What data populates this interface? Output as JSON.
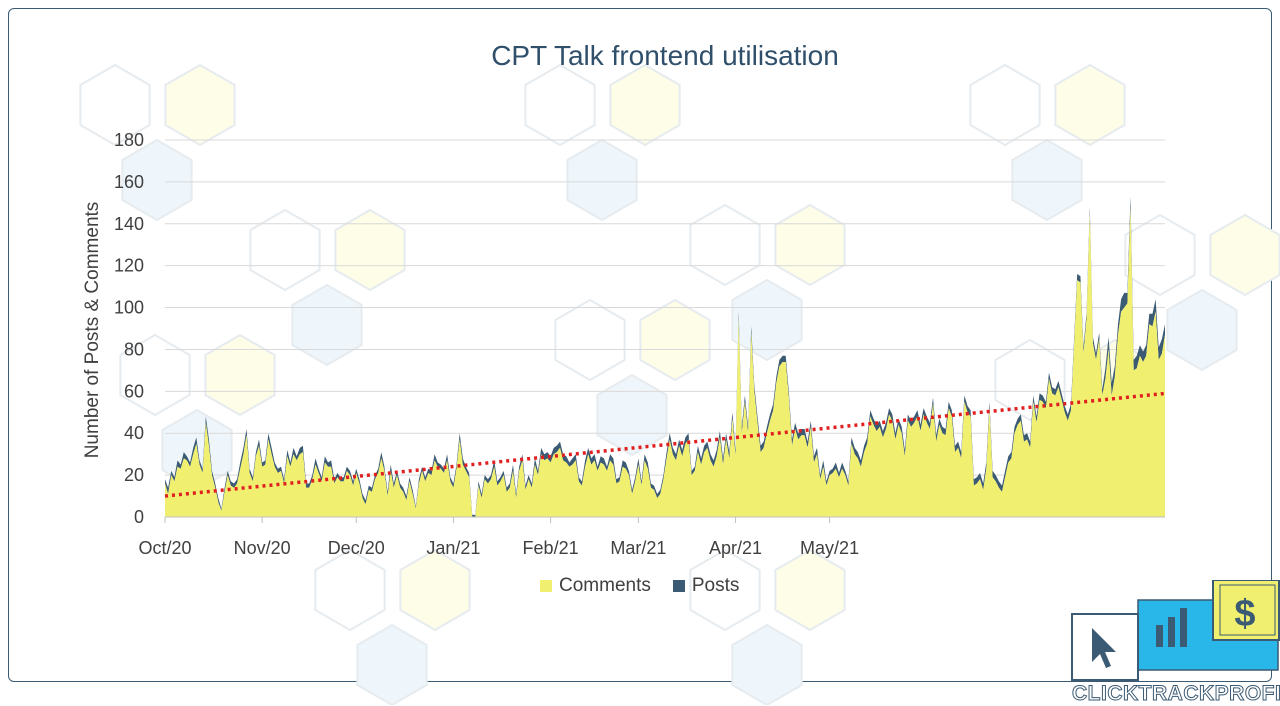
{
  "chart_data": {
    "type": "area",
    "title": "CPT Talk frontend utilisation",
    "ylabel": "Number of Posts & Comments",
    "xlabel": "",
    "ylim": [
      0,
      180
    ],
    "yticks": [
      0,
      20,
      40,
      60,
      80,
      100,
      120,
      140,
      160,
      180
    ],
    "x_tick_labels": [
      "Oct/20",
      "Nov/20",
      "Dec/20",
      "Jan/21",
      "Feb/21",
      "Mar/21",
      "Apr/21",
      "May/21"
    ],
    "x_tick_days": [
      0,
      31,
      61,
      92,
      123,
      151,
      182,
      212
    ],
    "grid": true,
    "legend_position": "bottom",
    "stacked": true,
    "series": [
      {
        "name": "Comments",
        "color": "#f0ef6f",
        "values": [
          16,
          11,
          20,
          17,
          24,
          23,
          28,
          27,
          24,
          30,
          35,
          25,
          21,
          45,
          34,
          20,
          14,
          7,
          3,
          12,
          20,
          15,
          14,
          16,
          23,
          30,
          39,
          21,
          17,
          29,
          34,
          24,
          25,
          37,
          30,
          24,
          21,
          22,
          16,
          29,
          24,
          30,
          27,
          30,
          31,
          14,
          14,
          18,
          25,
          21,
          17,
          26,
          24,
          24,
          16,
          19,
          17,
          17,
          22,
          20,
          15,
          21,
          16,
          9,
          6,
          13,
          12,
          18,
          21,
          28,
          22,
          10,
          22,
          14,
          20,
          14,
          12,
          8,
          17,
          11,
          4,
          16,
          22,
          17,
          21,
          20,
          27,
          24,
          23,
          21,
          27,
          17,
          14,
          23,
          37,
          25,
          22,
          19,
          0,
          0,
          15,
          9,
          18,
          16,
          18,
          24,
          15,
          17,
          20,
          12,
          14,
          22,
          9,
          22,
          27,
          13,
          18,
          14,
          25,
          20,
          30,
          27,
          28,
          26,
          30,
          31,
          33,
          27,
          26,
          24,
          25,
          27,
          17,
          15,
          24,
          30,
          25,
          27,
          22,
          26,
          25,
          22,
          27,
          25,
          16,
          17,
          24,
          23,
          20,
          11,
          17,
          25,
          15,
          27,
          23,
          14,
          13,
          9,
          11,
          18,
          28,
          37,
          30,
          27,
          34,
          29,
          35,
          37,
          20,
          22,
          31,
          25,
          31,
          33,
          27,
          24,
          29,
          38,
          25,
          37,
          28,
          47,
          29,
          95,
          40,
          55,
          40,
          88,
          60,
          45,
          31,
          33,
          40,
          46,
          51,
          64,
          72,
          74,
          74,
          57,
          34,
          42,
          37,
          39,
          39,
          33,
          43,
          26,
          30,
          18,
          24,
          15,
          20,
          21,
          23,
          19,
          23,
          20,
          15,
          35,
          30,
          28,
          24,
          31,
          35,
          48,
          44,
          41,
          43,
          38,
          42,
          49,
          46,
          37,
          44,
          40,
          29,
          46,
          43,
          45,
          48,
          41,
          49,
          45,
          42,
          54,
          36,
          44,
          40,
          39,
          52,
          48,
          31,
          33,
          28,
          55,
          50,
          48,
          15,
          16,
          18,
          13,
          23,
          52,
          19,
          17,
          14,
          12,
          19,
          26,
          28,
          40,
          44,
          46,
          36,
          37,
          33,
          55,
          45,
          56,
          55,
          52,
          66,
          59,
          58,
          62,
          56,
          50,
          46,
          51,
          82,
          113,
          112,
          78,
          95,
          145,
          83,
          75,
          85,
          58,
          66,
          80,
          58,
          67,
          87,
          98,
          100,
          102,
          148,
          70,
          71,
          77,
          74,
          77,
          92,
          91,
          98,
          75,
          78,
          87
        ]
      },
      {
        "name": "Posts",
        "color": "#3b5a73",
        "values": [
          2,
          3,
          2,
          2,
          3,
          2,
          3,
          2,
          2,
          3,
          3,
          2,
          2,
          3,
          3,
          2,
          2,
          2,
          1,
          2,
          2,
          2,
          2,
          2,
          3,
          3,
          3,
          2,
          2,
          2,
          3,
          2,
          2,
          3,
          3,
          2,
          2,
          2,
          2,
          3,
          2,
          3,
          2,
          3,
          3,
          2,
          2,
          2,
          3,
          2,
          2,
          3,
          2,
          3,
          2,
          2,
          2,
          2,
          2,
          2,
          2,
          2,
          2,
          2,
          2,
          2,
          2,
          2,
          2,
          3,
          2,
          2,
          3,
          2,
          2,
          2,
          2,
          2,
          2,
          2,
          1,
          2,
          2,
          2,
          2,
          2,
          3,
          2,
          2,
          2,
          3,
          2,
          2,
          2,
          3,
          3,
          2,
          2,
          1,
          1,
          2,
          2,
          2,
          2,
          2,
          3,
          2,
          2,
          2,
          2,
          2,
          3,
          2,
          2,
          3,
          2,
          2,
          2,
          3,
          2,
          3,
          3,
          3,
          3,
          3,
          3,
          3,
          3,
          3,
          2,
          3,
          3,
          2,
          2,
          3,
          3,
          3,
          3,
          2,
          3,
          3,
          2,
          3,
          3,
          2,
          2,
          3,
          3,
          2,
          2,
          2,
          3,
          2,
          3,
          3,
          2,
          2,
          2,
          2,
          2,
          3,
          3,
          3,
          3,
          3,
          3,
          3,
          3,
          2,
          2,
          3,
          3,
          3,
          3,
          3,
          3,
          3,
          3,
          3,
          3,
          3,
          3,
          3,
          3,
          3,
          3,
          3,
          3,
          3,
          3,
          3,
          3,
          3,
          3,
          3,
          3,
          3,
          3,
          3,
          3,
          3,
          3,
          3,
          3,
          3,
          3,
          3,
          3,
          3,
          2,
          3,
          2,
          2,
          2,
          3,
          2,
          3,
          2,
          2,
          3,
          3,
          3,
          3,
          3,
          3,
          3,
          3,
          3,
          3,
          3,
          3,
          3,
          3,
          3,
          3,
          3,
          3,
          3,
          3,
          3,
          3,
          3,
          3,
          3,
          3,
          3,
          3,
          3,
          3,
          3,
          3,
          3,
          3,
          3,
          3,
          3,
          3,
          3,
          3,
          3,
          3,
          3,
          3,
          3,
          3,
          3,
          3,
          3,
          3,
          3,
          3,
          3,
          3,
          3,
          3,
          3,
          3,
          3,
          3,
          3,
          3,
          3,
          3,
          3,
          3,
          3,
          3,
          3,
          3,
          3,
          3,
          3,
          3,
          3,
          3,
          3,
          3,
          3,
          3,
          3,
          5,
          6,
          6,
          5,
          5,
          6,
          7,
          5,
          5,
          5,
          6,
          5,
          5,
          5,
          5,
          6,
          6,
          6,
          7,
          5,
          5,
          5,
          5,
          5,
          5,
          6,
          6,
          5,
          5,
          6
        ]
      }
    ],
    "trendline": {
      "name": "Linear trend",
      "color": "#e02020",
      "style": "dotted",
      "start_value": 10,
      "end_value": 59
    }
  },
  "legend": {
    "comments_label": "Comments",
    "posts_label": "Posts"
  },
  "logo": {
    "text": "CLICKTRACKPROFIT",
    "colors": {
      "blue": "#29b6e8",
      "yellow": "#f0ef6f",
      "dark": "#3b5a73"
    }
  }
}
